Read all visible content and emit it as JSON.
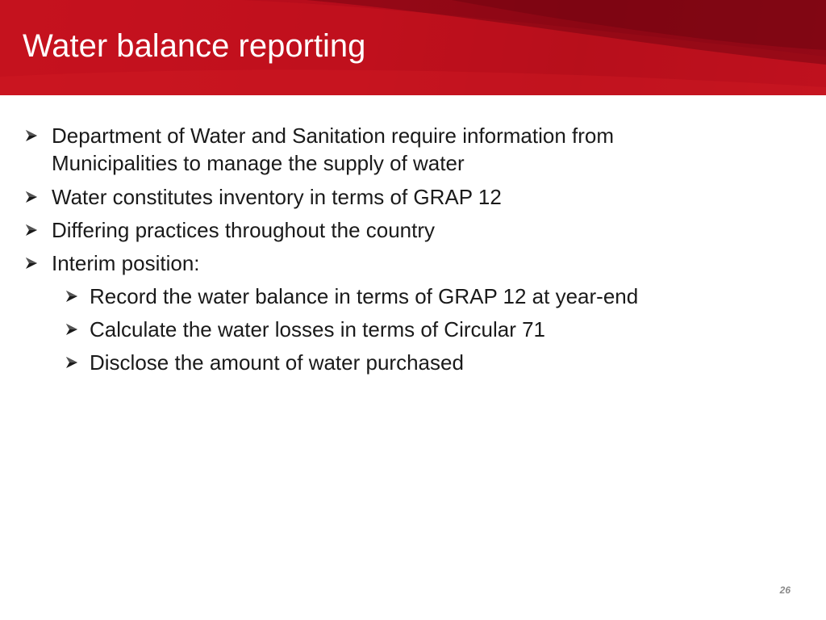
{
  "slide": {
    "title": "Water balance reporting",
    "page_number": "26"
  },
  "bullets": [
    {
      "level": 1,
      "text": "Department of Water and Sanitation require information from Municipalities to manage the supply of water"
    },
    {
      "level": 1,
      "text": "Water constitutes inventory in terms of GRAP 12"
    },
    {
      "level": 1,
      "text": "Differing practices throughout the country"
    },
    {
      "level": 1,
      "text": "Interim position:"
    },
    {
      "level": 2,
      "text": "Record the water balance in terms of GRAP 12 at year-end"
    },
    {
      "level": 2,
      "text": "Calculate the water losses in terms of Circular 71"
    },
    {
      "level": 2,
      "text": "Disclose the amount of water purchased"
    }
  ],
  "colors": {
    "header_red": "#b50c1b",
    "title_text": "#ffffff",
    "body_text": "#1a1a1a",
    "page_number": "#8a8a8a"
  },
  "icons": {
    "bullet_marker": "arrowhead-bullet-icon"
  }
}
